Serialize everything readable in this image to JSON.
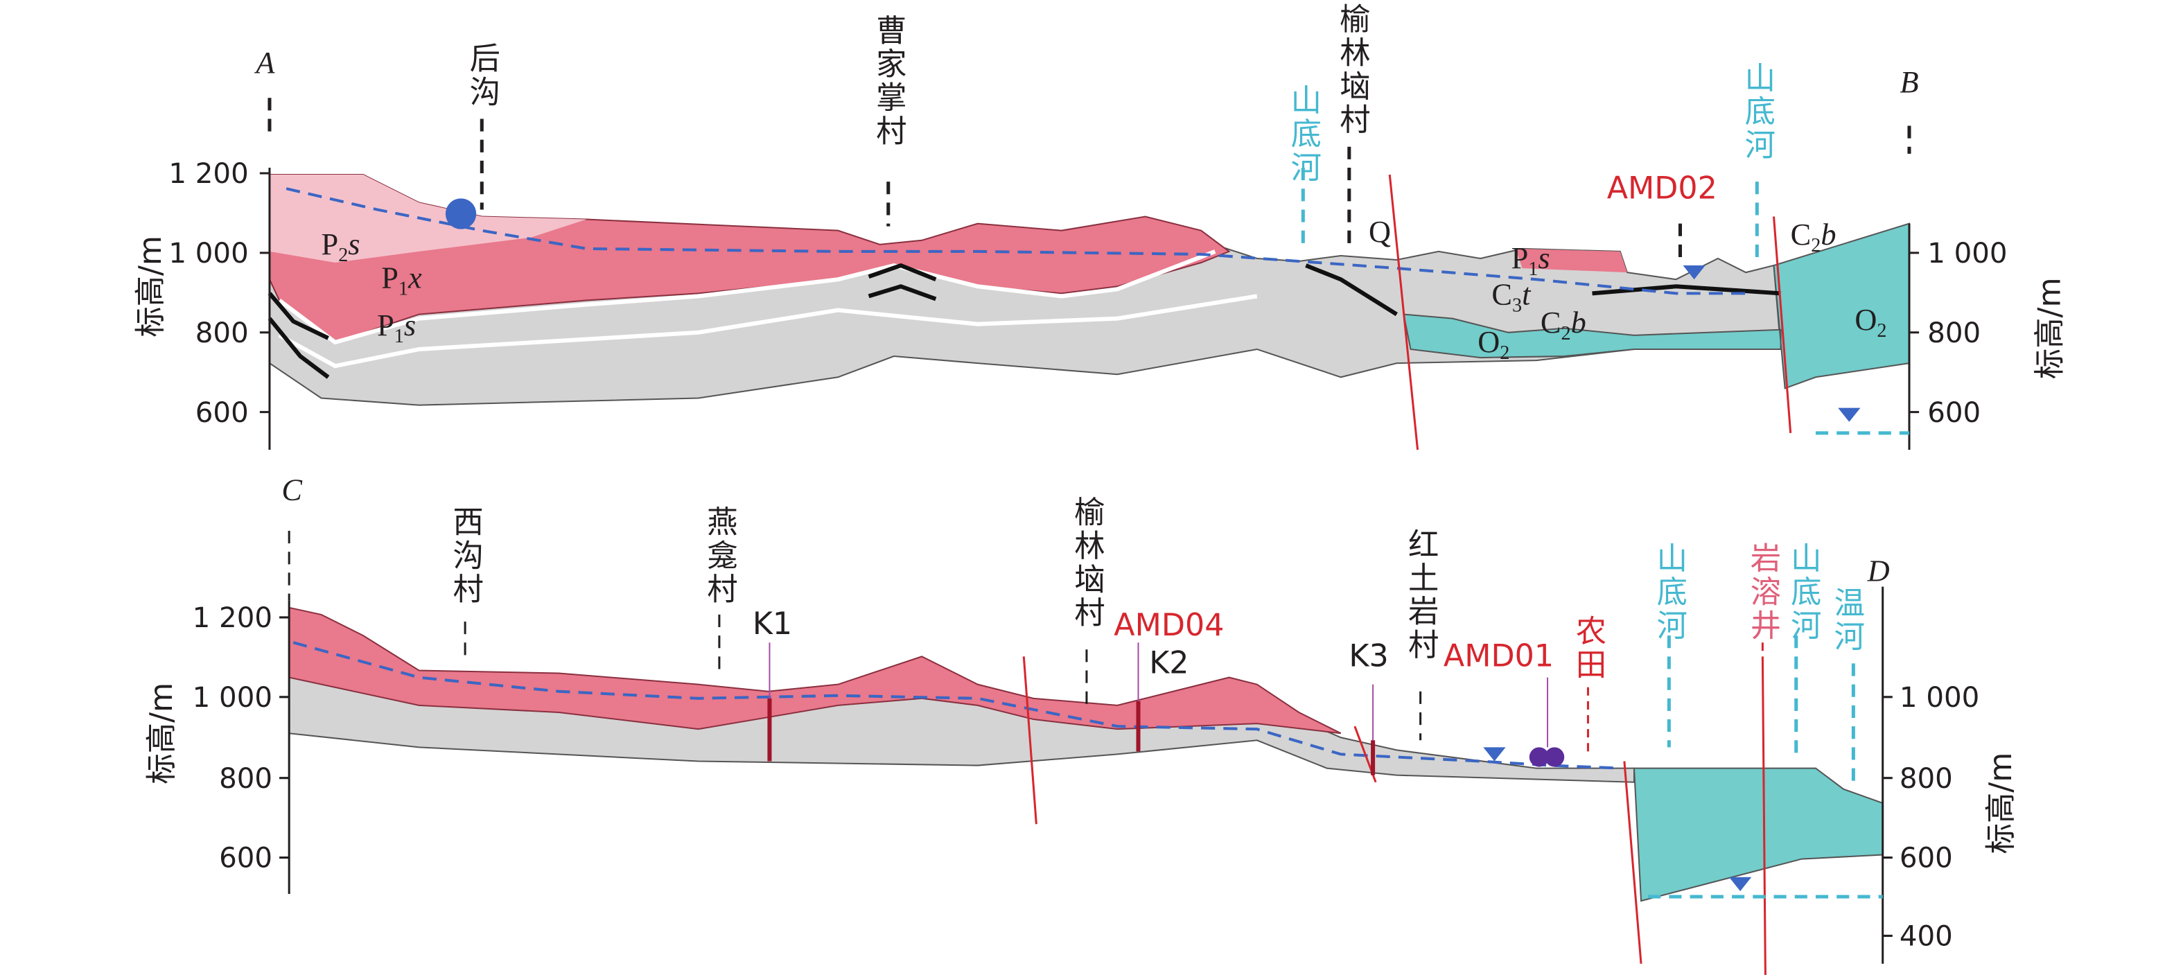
{
  "sections": [
    {
      "ends": [
        "A",
        "B"
      ],
      "axis_label_left": "标高/m",
      "axis_label_right": "标高/m",
      "ticks_left": [
        "1 200",
        "1 000",
        "800",
        "600"
      ],
      "ticks_right": [
        "1 000",
        "800",
        "600"
      ],
      "places": [
        "后沟",
        "曹家掌村",
        "山底河",
        "榆林垴村",
        "山底河"
      ],
      "samples": [
        "AMD02"
      ],
      "strata": [
        [
          "P",
          "2",
          "s"
        ],
        [
          "P",
          "1",
          "x"
        ],
        [
          "P",
          "1",
          "s"
        ],
        [
          "Q"
        ],
        [
          "P",
          "1",
          "s"
        ],
        [
          "C",
          "3",
          "t"
        ],
        [
          "C",
          "2",
          "b"
        ],
        [
          "O",
          "2"
        ],
        [
          "C",
          "2",
          "b"
        ],
        [
          "O",
          "2"
        ]
      ]
    },
    {
      "ends": [
        "C",
        "D"
      ],
      "axis_label_left": "标高/m",
      "axis_label_right": "标高/m",
      "ticks_left": [
        "1 200",
        "1 000",
        "800",
        "600"
      ],
      "ticks_right": [
        "1 000",
        "800",
        "600",
        "400"
      ],
      "places": [
        "西沟村",
        "燕龛村",
        "榆林垴村",
        "红土岩村",
        "农田",
        "山底河",
        "岩溶井",
        "山底河",
        "温河"
      ],
      "samples": [
        "AMD04",
        "AMD01"
      ],
      "wells": [
        "K1",
        "K2",
        "K3"
      ]
    }
  ]
}
